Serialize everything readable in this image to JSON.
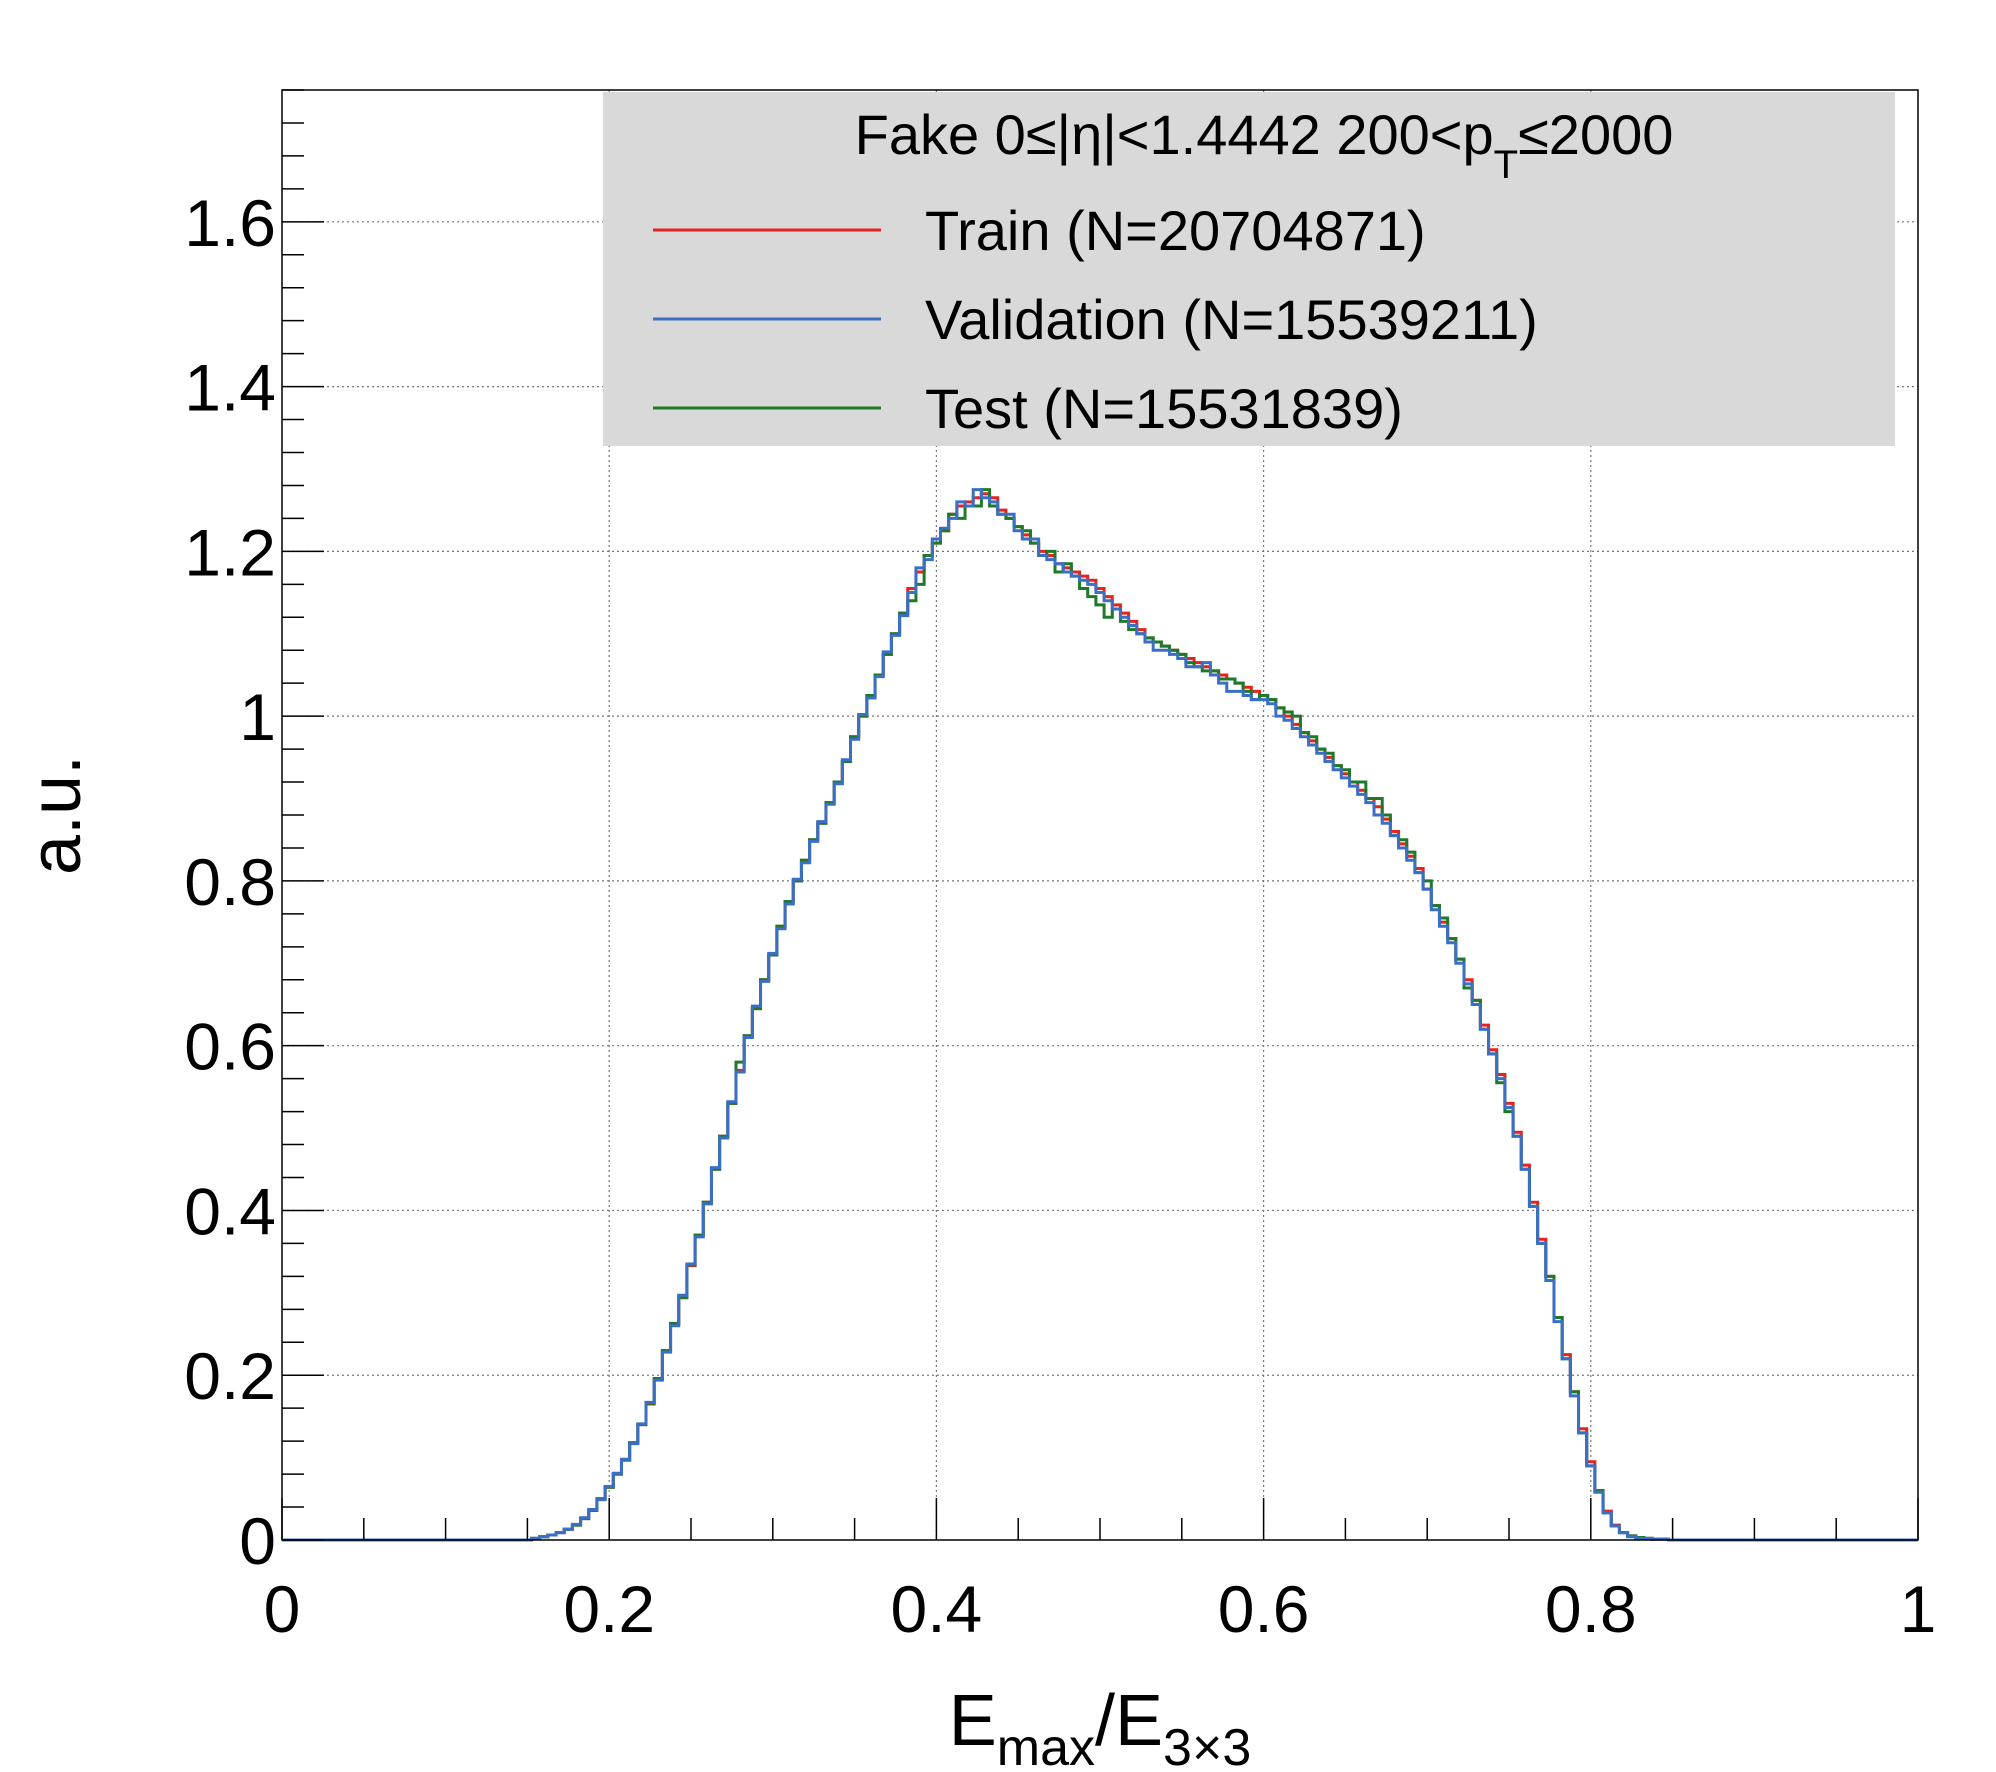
{
  "chart_data": {
    "type": "line",
    "xlabel": "E_max/E_3x3",
    "xlabel_main": "E",
    "xlabel_sub1": "max",
    "xlabel_mid": "/E",
    "xlabel_sub2": "3×3",
    "ylabel": "a.u.",
    "xlim": [
      0,
      1
    ],
    "ylim": [
      0,
      1.76
    ],
    "x_ticks": [
      0,
      0.2,
      0.4,
      0.6,
      0.8,
      1
    ],
    "x_tick_labels": [
      "0",
      "0.2",
      "0.4",
      "0.6",
      "0.8",
      "1"
    ],
    "y_ticks": [
      0,
      0.2,
      0.4,
      0.6,
      0.8,
      1,
      1.2,
      1.4,
      1.6
    ],
    "y_tick_labels": [
      "0",
      "0.2",
      "0.4",
      "0.6",
      "0.8",
      "1",
      "1.2",
      "1.4",
      "1.6"
    ],
    "grid": true,
    "legend_position": "top-right",
    "legend_header_parts": {
      "a": "Fake  0≤|η|<1.4442  200<p",
      "sub": "T",
      "b": "≤2000"
    },
    "colors": {
      "train": "#e8221c",
      "validation": "#3a6fc4",
      "test": "#1e7a28"
    },
    "x": [
      0.155,
      0.16,
      0.165,
      0.17,
      0.175,
      0.18,
      0.185,
      0.19,
      0.195,
      0.2,
      0.205,
      0.21,
      0.215,
      0.22,
      0.225,
      0.23,
      0.235,
      0.24,
      0.245,
      0.25,
      0.255,
      0.26,
      0.265,
      0.27,
      0.275,
      0.28,
      0.285,
      0.29,
      0.295,
      0.3,
      0.305,
      0.31,
      0.315,
      0.32,
      0.325,
      0.33,
      0.335,
      0.34,
      0.345,
      0.35,
      0.355,
      0.36,
      0.365,
      0.37,
      0.375,
      0.38,
      0.385,
      0.39,
      0.395,
      0.4,
      0.405,
      0.41,
      0.415,
      0.42,
      0.425,
      0.43,
      0.435,
      0.44,
      0.445,
      0.45,
      0.455,
      0.46,
      0.465,
      0.47,
      0.475,
      0.48,
      0.485,
      0.49,
      0.495,
      0.5,
      0.505,
      0.51,
      0.515,
      0.52,
      0.525,
      0.53,
      0.535,
      0.54,
      0.545,
      0.55,
      0.555,
      0.56,
      0.565,
      0.57,
      0.575,
      0.58,
      0.585,
      0.59,
      0.595,
      0.6,
      0.605,
      0.61,
      0.615,
      0.62,
      0.625,
      0.63,
      0.635,
      0.64,
      0.645,
      0.65,
      0.655,
      0.66,
      0.665,
      0.67,
      0.675,
      0.68,
      0.685,
      0.69,
      0.695,
      0.7,
      0.705,
      0.71,
      0.715,
      0.72,
      0.725,
      0.73,
      0.735,
      0.74,
      0.745,
      0.75,
      0.755,
      0.76,
      0.765,
      0.77,
      0.775,
      0.78,
      0.785,
      0.79,
      0.795,
      0.8,
      0.805,
      0.81,
      0.815,
      0.82,
      0.825,
      0.83,
      0.835,
      0.84,
      0.845,
      0.85,
      0.855,
      0.86
    ],
    "series": [
      {
        "name": "Train (N=20704871)",
        "values": [
          0.002,
          0.004,
          0.006,
          0.009,
          0.013,
          0.018,
          0.026,
          0.036,
          0.05,
          0.064,
          0.08,
          0.097,
          0.118,
          0.14,
          0.165,
          0.195,
          0.23,
          0.262,
          0.295,
          0.333,
          0.37,
          0.41,
          0.45,
          0.49,
          0.53,
          0.57,
          0.612,
          0.645,
          0.68,
          0.71,
          0.745,
          0.775,
          0.8,
          0.825,
          0.85,
          0.87,
          0.895,
          0.92,
          0.945,
          0.975,
          1.0,
          1.025,
          1.05,
          1.075,
          1.1,
          1.125,
          1.155,
          1.175,
          1.195,
          1.21,
          1.225,
          1.245,
          1.255,
          1.26,
          1.265,
          1.27,
          1.265,
          1.25,
          1.24,
          1.23,
          1.22,
          1.21,
          1.2,
          1.195,
          1.185,
          1.18,
          1.175,
          1.17,
          1.165,
          1.155,
          1.145,
          1.135,
          1.125,
          1.115,
          1.105,
          1.095,
          1.09,
          1.085,
          1.08,
          1.075,
          1.07,
          1.065,
          1.06,
          1.055,
          1.05,
          1.045,
          1.04,
          1.035,
          1.03,
          1.025,
          1.02,
          1.01,
          1.0,
          0.99,
          0.98,
          0.97,
          0.96,
          0.95,
          0.94,
          0.93,
          0.92,
          0.91,
          0.9,
          0.89,
          0.875,
          0.86,
          0.845,
          0.83,
          0.815,
          0.79,
          0.77,
          0.75,
          0.73,
          0.705,
          0.68,
          0.655,
          0.625,
          0.595,
          0.565,
          0.53,
          0.495,
          0.455,
          0.41,
          0.365,
          0.32,
          0.27,
          0.225,
          0.18,
          0.135,
          0.095,
          0.06,
          0.035,
          0.018,
          0.009,
          0.005,
          0.003,
          0.002,
          0.001,
          0.001,
          0.0,
          0.0,
          0.0
        ]
      },
      {
        "name": "Validation (N=15539211)",
        "values": [
          0.002,
          0.004,
          0.006,
          0.009,
          0.013,
          0.019,
          0.027,
          0.037,
          0.049,
          0.065,
          0.081,
          0.098,
          0.117,
          0.141,
          0.167,
          0.194,
          0.228,
          0.26,
          0.297,
          0.335,
          0.368,
          0.408,
          0.452,
          0.488,
          0.532,
          0.568,
          0.61,
          0.648,
          0.678,
          0.712,
          0.742,
          0.772,
          0.802,
          0.822,
          0.848,
          0.872,
          0.893,
          0.918,
          0.947,
          0.972,
          1.002,
          1.022,
          1.048,
          1.078,
          1.098,
          1.122,
          1.15,
          1.18,
          1.19,
          1.215,
          1.228,
          1.24,
          1.26,
          1.255,
          1.275,
          1.265,
          1.26,
          1.245,
          1.245,
          1.225,
          1.215,
          1.215,
          1.195,
          1.19,
          1.185,
          1.175,
          1.17,
          1.165,
          1.16,
          1.15,
          1.14,
          1.13,
          1.12,
          1.11,
          1.1,
          1.09,
          1.08,
          1.08,
          1.075,
          1.07,
          1.06,
          1.06,
          1.065,
          1.05,
          1.04,
          1.03,
          1.03,
          1.025,
          1.02,
          1.02,
          1.015,
          1.0,
          0.995,
          0.985,
          0.975,
          0.965,
          0.955,
          0.945,
          0.935,
          0.925,
          0.915,
          0.905,
          0.895,
          0.88,
          0.87,
          0.855,
          0.84,
          0.825,
          0.81,
          0.79,
          0.765,
          0.745,
          0.725,
          0.7,
          0.675,
          0.65,
          0.62,
          0.59,
          0.56,
          0.525,
          0.49,
          0.45,
          0.405,
          0.36,
          0.315,
          0.265,
          0.22,
          0.175,
          0.13,
          0.09,
          0.058,
          0.033,
          0.017,
          0.009,
          0.004,
          0.002,
          0.002,
          0.001,
          0.001,
          0.0,
          0.0,
          0.0
        ]
      },
      {
        "name": "Test (N=15531839)",
        "values": [
          0.002,
          0.004,
          0.006,
          0.009,
          0.013,
          0.018,
          0.026,
          0.036,
          0.05,
          0.064,
          0.08,
          0.097,
          0.118,
          0.14,
          0.166,
          0.196,
          0.229,
          0.263,
          0.294,
          0.334,
          0.37,
          0.41,
          0.45,
          0.49,
          0.53,
          0.58,
          0.612,
          0.645,
          0.68,
          0.71,
          0.745,
          0.775,
          0.8,
          0.825,
          0.85,
          0.87,
          0.895,
          0.92,
          0.945,
          0.975,
          1.0,
          1.025,
          1.05,
          1.075,
          1.1,
          1.125,
          1.14,
          1.16,
          1.195,
          1.21,
          1.225,
          1.245,
          1.24,
          1.255,
          1.255,
          1.275,
          1.255,
          1.245,
          1.24,
          1.23,
          1.225,
          1.21,
          1.195,
          1.2,
          1.175,
          1.185,
          1.17,
          1.155,
          1.145,
          1.135,
          1.12,
          1.13,
          1.115,
          1.105,
          1.1,
          1.095,
          1.09,
          1.085,
          1.08,
          1.075,
          1.065,
          1.06,
          1.055,
          1.055,
          1.045,
          1.045,
          1.04,
          1.03,
          1.02,
          1.025,
          1.02,
          1.01,
          1.005,
          1.0,
          0.98,
          0.975,
          0.96,
          0.955,
          0.94,
          0.935,
          0.92,
          0.92,
          0.9,
          0.9,
          0.88,
          0.855,
          0.85,
          0.835,
          0.81,
          0.8,
          0.77,
          0.755,
          0.73,
          0.705,
          0.67,
          0.655,
          0.62,
          0.59,
          0.555,
          0.52,
          0.49,
          0.45,
          0.405,
          0.36,
          0.32,
          0.27,
          0.22,
          0.18,
          0.13,
          0.09,
          0.06,
          0.033,
          0.017,
          0.009,
          0.005,
          0.003,
          0.002,
          0.001,
          0.001,
          0.0,
          0.0,
          0.0
        ]
      }
    ]
  }
}
